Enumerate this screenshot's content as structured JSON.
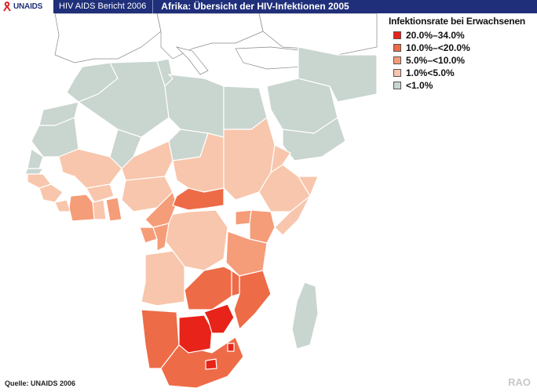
{
  "header": {
    "logo_text": "UNAIDS",
    "report_title": "HIV AIDS Bericht 2006",
    "map_title": "Afrika: Übersicht der HIV-Infektionen 2005"
  },
  "legend": {
    "title": "Infektionsrate bei Erwachsenen",
    "items": [
      {
        "label": "20.0%–34.0%",
        "color": "#e8231a"
      },
      {
        "label": "10.0%–<20.0%",
        "color": "#ee6b47"
      },
      {
        "label": "5.0%–<10.0%",
        "color": "#f59c78"
      },
      {
        "label": "1.0%<5.0%",
        "color": "#f8c6ac"
      },
      {
        "label": "<1.0%",
        "color": "#c9d5cf"
      }
    ]
  },
  "colors": {
    "low": "#c9d5cf",
    "c1": "#f8c6ac",
    "c5": "#f59c78",
    "c10": "#ee6b47",
    "c20": "#e8231a",
    "border": "#ffffff",
    "water": "#ffffff",
    "brand": "#1f2f7a"
  },
  "footer": {
    "source": "Quelle: UNAIDS 2006",
    "watermark": "RAO"
  }
}
